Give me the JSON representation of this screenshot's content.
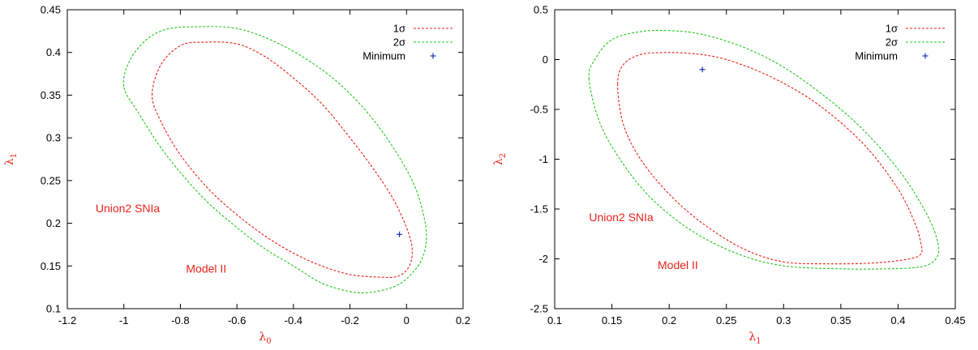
{
  "colors": {
    "sigma1": "#e8231b",
    "sigma2": "#22c81e",
    "minimum": "#1f2fbf",
    "label": "#e8231b"
  },
  "chart_data": [
    {
      "type": "line",
      "subtype": "confidence-contour",
      "xlabel": "λ",
      "xlabel_sub": "0",
      "ylabel": "λ",
      "ylabel_sub": "1",
      "xlim": [
        -1.2,
        0.2
      ],
      "ylim": [
        0.1,
        0.45
      ],
      "xticks": [
        -1.2,
        -1,
        -0.8,
        -0.6,
        -0.4,
        -0.2,
        0,
        0.2
      ],
      "xtick_labels": [
        "-1.2",
        "-1",
        "-0.8",
        "-0.6",
        "-0.4",
        "-0.2",
        "0",
        "0.2"
      ],
      "yticks": [
        0.1,
        0.15,
        0.2,
        0.25,
        0.3,
        0.35,
        0.4,
        0.45
      ],
      "ytick_labels": [
        "0.1",
        "0.15",
        "0.2",
        "0.25",
        "0.3",
        "0.35",
        "0.4",
        "0.45"
      ],
      "legend_position": "top-right",
      "series": [
        {
          "name": "1σ",
          "style": "dashed",
          "x": [
            -0.9,
            -0.87,
            -0.8,
            -0.72,
            -0.6,
            -0.5,
            -0.4,
            -0.3,
            -0.2,
            -0.12,
            -0.05,
            0.0,
            0.02,
            0.01,
            -0.03,
            -0.1,
            -0.2,
            -0.3,
            -0.4,
            -0.5,
            -0.6,
            -0.7,
            -0.8,
            -0.87,
            -0.9
          ],
          "y": [
            0.35,
            0.385,
            0.408,
            0.412,
            0.41,
            0.395,
            0.37,
            0.34,
            0.3,
            0.265,
            0.23,
            0.195,
            0.17,
            0.15,
            0.138,
            0.137,
            0.14,
            0.15,
            0.165,
            0.185,
            0.21,
            0.24,
            0.28,
            0.32,
            0.35
          ]
        },
        {
          "name": "2σ",
          "style": "dashed",
          "x": [
            -1.0,
            -0.98,
            -0.92,
            -0.85,
            -0.75,
            -0.6,
            -0.45,
            -0.3,
            -0.18,
            -0.07,
            0.02,
            0.06,
            0.07,
            0.05,
            0.0,
            -0.05,
            -0.13,
            -0.2,
            -0.3,
            -0.4,
            -0.5,
            -0.6,
            -0.72,
            -0.85,
            -0.95,
            -1.0
          ],
          "y": [
            0.36,
            0.39,
            0.415,
            0.427,
            0.43,
            0.428,
            0.41,
            0.38,
            0.345,
            0.3,
            0.25,
            0.21,
            0.18,
            0.155,
            0.135,
            0.125,
            0.119,
            0.12,
            0.13,
            0.15,
            0.17,
            0.195,
            0.23,
            0.28,
            0.33,
            0.36
          ]
        },
        {
          "name": "Minimum",
          "style": "marker",
          "x": [
            -0.025
          ],
          "y": [
            0.187
          ]
        }
      ],
      "annotations": [
        {
          "text": "Union2 SNIa",
          "x": -1.1,
          "y": 0.213
        },
        {
          "text": "Model II",
          "x": -0.78,
          "y": 0.142
        }
      ]
    },
    {
      "type": "line",
      "subtype": "confidence-contour",
      "xlabel": "λ",
      "xlabel_sub": "1",
      "ylabel": "λ",
      "ylabel_sub": "2",
      "xlim": [
        0.1,
        0.45
      ],
      "ylim": [
        -2.5,
        0.5
      ],
      "xticks": [
        0.1,
        0.15,
        0.2,
        0.25,
        0.3,
        0.35,
        0.4,
        0.45
      ],
      "xtick_labels": [
        "0.1",
        "0.15",
        "0.2",
        "0.25",
        "0.3",
        "0.35",
        "0.4",
        "0.45"
      ],
      "yticks": [
        -2.5,
        -2,
        -1.5,
        -1,
        -0.5,
        0,
        0.5
      ],
      "ytick_labels": [
        "-2.5",
        "-2",
        "-1.5",
        "-1",
        "-0.5",
        "0",
        "0.5"
      ],
      "legend_position": "top-right",
      "series": [
        {
          "name": "1σ",
          "style": "dashed",
          "x": [
            0.155,
            0.16,
            0.175,
            0.195,
            0.22,
            0.25,
            0.29,
            0.33,
            0.37,
            0.4,
            0.415,
            0.42,
            0.42,
            0.41,
            0.38,
            0.34,
            0.3,
            0.265,
            0.23,
            0.2,
            0.175,
            0.16,
            0.155
          ],
          "y": [
            -0.25,
            -0.05,
            0.05,
            0.07,
            0.06,
            0.0,
            -0.18,
            -0.45,
            -0.85,
            -1.3,
            -1.65,
            -1.85,
            -1.95,
            -2.0,
            -2.04,
            -2.05,
            -2.03,
            -1.9,
            -1.65,
            -1.35,
            -1.0,
            -0.65,
            -0.25
          ]
        },
        {
          "name": "2σ",
          "style": "dashed",
          "x": [
            0.13,
            0.135,
            0.15,
            0.175,
            0.2,
            0.23,
            0.27,
            0.31,
            0.36,
            0.4,
            0.425,
            0.435,
            0.433,
            0.42,
            0.39,
            0.35,
            0.3,
            0.26,
            0.22,
            0.185,
            0.16,
            0.14,
            0.13
          ],
          "y": [
            -0.2,
            0.0,
            0.2,
            0.28,
            0.29,
            0.25,
            0.1,
            -0.15,
            -0.6,
            -1.1,
            -1.55,
            -1.85,
            -2.0,
            -2.08,
            -2.1,
            -2.1,
            -2.07,
            -1.95,
            -1.72,
            -1.4,
            -1.05,
            -0.65,
            -0.2
          ]
        },
        {
          "name": "Minimum",
          "style": "marker",
          "x": [
            0.229
          ],
          "y": [
            -0.1
          ]
        }
      ],
      "annotations": [
        {
          "text": "Union2 SNIa",
          "x": 0.13,
          "y": -1.62
        },
        {
          "text": "Model II",
          "x": 0.19,
          "y": -2.1
        }
      ]
    }
  ]
}
